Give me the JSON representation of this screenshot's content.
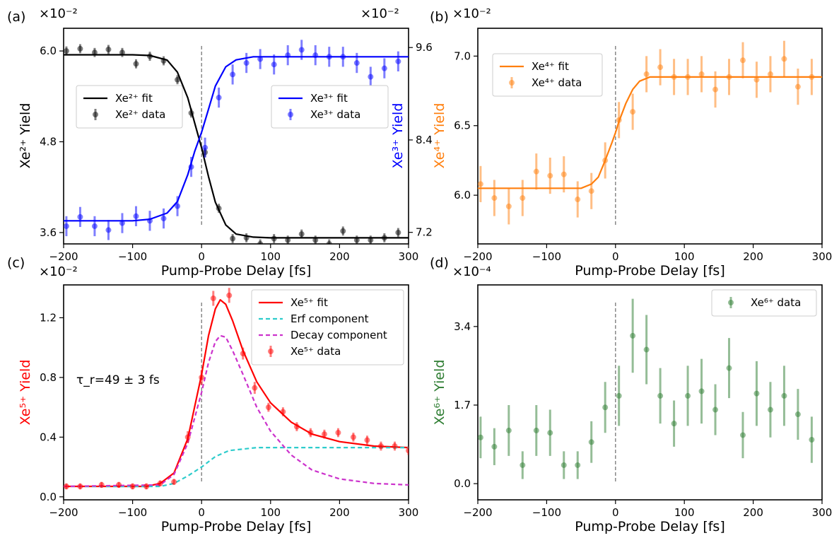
{
  "figure": {
    "colors": {
      "black": "#000000",
      "blue": "#0000ff",
      "orange": "#ff7f0e",
      "red": "#ff0000",
      "teal": "#2ecccc",
      "magenta": "#cc33cc",
      "green": "#2e7d32"
    }
  },
  "chart_data": [
    {
      "panel": "(a)",
      "type": "scatter",
      "xlabel": "Pump-Probe Delay [fs]",
      "ylabel": "Xe²⁺ Yield",
      "y2label": "Xe³⁺ Yield",
      "xlim": [
        -200,
        300
      ],
      "xticks": [
        "−200",
        "−100",
        "0",
        "100",
        "200",
        "300"
      ],
      "ylim": [
        3.45,
        6.3
      ],
      "yticks": [
        "3.6",
        "4.8",
        "6.0"
      ],
      "y_multiplier": "×10⁻²",
      "y2lim": [
        7.05,
        9.85
      ],
      "y2ticks": [
        "7.2",
        "8.4",
        "9.6"
      ],
      "y2_multiplier": "×10⁻²",
      "legend_left": [
        {
          "label": "Xe²⁺ fit",
          "kind": "line",
          "color": "#000000"
        },
        {
          "label": "Xe²⁺ data",
          "kind": "point",
          "color": "#000000"
        }
      ],
      "legend_right": [
        {
          "label": "Xe³⁺ fit",
          "kind": "line",
          "color": "#0000ff"
        },
        {
          "label": "Xe³⁺ data",
          "kind": "point",
          "color": "#0000ff"
        }
      ],
      "series": [
        {
          "name": "Xe²⁺ data",
          "axis": "left",
          "color": "#000000",
          "x": [
            -196,
            -176,
            -155,
            -135,
            -115,
            -95,
            -75,
            -55,
            -35,
            -15,
            5,
            25,
            45,
            65,
            85,
            105,
            125,
            145,
            165,
            185,
            205,
            225,
            245,
            265,
            285
          ],
          "y": [
            6.0,
            6.03,
            5.98,
            6.02,
            5.98,
            5.83,
            5.93,
            5.87,
            5.62,
            5.18,
            4.66,
            3.92,
            3.52,
            3.53,
            3.45,
            3.52,
            3.5,
            3.58,
            3.5,
            3.45,
            3.62,
            3.5,
            3.5,
            3.53,
            3.6
          ],
          "err": [
            0.06,
            0.06,
            0.06,
            0.06,
            0.06,
            0.06,
            0.06,
            0.06,
            0.06,
            0.06,
            0.06,
            0.06,
            0.06,
            0.06,
            0.06,
            0.06,
            0.06,
            0.06,
            0.06,
            0.06,
            0.06,
            0.06,
            0.06,
            0.06,
            0.06
          ]
        },
        {
          "name": "Xe³⁺ data",
          "axis": "right",
          "color": "#0000ff",
          "x": [
            -196,
            -176,
            -155,
            -135,
            -115,
            -95,
            -75,
            -55,
            -35,
            -15,
            5,
            25,
            45,
            65,
            85,
            105,
            125,
            145,
            165,
            185,
            205,
            225,
            245,
            265,
            285
          ],
          "y": [
            7.28,
            7.4,
            7.28,
            7.23,
            7.32,
            7.41,
            7.35,
            7.38,
            7.54,
            8.05,
            8.3,
            8.95,
            9.25,
            9.4,
            9.45,
            9.38,
            9.5,
            9.57,
            9.5,
            9.48,
            9.48,
            9.4,
            9.22,
            9.33,
            9.42
          ],
          "err": [
            0.13,
            0.13,
            0.13,
            0.13,
            0.13,
            0.13,
            0.13,
            0.13,
            0.13,
            0.13,
            0.13,
            0.13,
            0.13,
            0.13,
            0.13,
            0.13,
            0.13,
            0.13,
            0.13,
            0.13,
            0.13,
            0.13,
            0.13,
            0.13,
            0.13
          ]
        },
        {
          "name": "Xe²⁺ fit",
          "axis": "left",
          "color": "#000000",
          "kind": "line",
          "x": [
            -200,
            -100,
            -75,
            -50,
            -35,
            -20,
            -10,
            0,
            10,
            20,
            35,
            50,
            75,
            100,
            300
          ],
          "y": [
            5.95,
            5.95,
            5.94,
            5.88,
            5.72,
            5.38,
            5.05,
            4.72,
            4.34,
            4.0,
            3.7,
            3.58,
            3.54,
            3.53,
            3.53
          ]
        },
        {
          "name": "Xe³⁺ fit",
          "axis": "right",
          "color": "#0000ff",
          "kind": "line",
          "x": [
            -200,
            -100,
            -75,
            -50,
            -35,
            -20,
            -10,
            0,
            10,
            20,
            35,
            50,
            75,
            100,
            300
          ],
          "y": [
            7.35,
            7.35,
            7.37,
            7.45,
            7.6,
            7.95,
            8.25,
            8.5,
            8.8,
            9.1,
            9.35,
            9.44,
            9.48,
            9.48,
            9.48
          ]
        }
      ],
      "vline_x": 0
    },
    {
      "panel": "(b)",
      "type": "scatter",
      "xlabel": "Pump-Probe Delay [fs]",
      "ylabel": "Xe⁴⁺ Yield",
      "xlim": [
        -200,
        300
      ],
      "xticks": [
        "−200",
        "−100",
        "0",
        "100",
        "200",
        "300"
      ],
      "ylim": [
        5.65,
        7.2
      ],
      "yticks": [
        "6.0",
        "6.5",
        "7.0"
      ],
      "y_multiplier": "×10⁻²",
      "legend": [
        {
          "label": "Xe⁴⁺ fit",
          "kind": "line",
          "color": "#ff7f0e"
        },
        {
          "label": "Xe⁴⁺ data",
          "kind": "point",
          "color": "#ff7f0e"
        }
      ],
      "series": [
        {
          "name": "Xe⁴⁺ data",
          "color": "#ff7f0e",
          "x": [
            -196,
            -176,
            -155,
            -135,
            -115,
            -95,
            -75,
            -55,
            -35,
            -15,
            5,
            25,
            45,
            65,
            85,
            105,
            125,
            145,
            165,
            185,
            205,
            225,
            245,
            265,
            285
          ],
          "y": [
            6.08,
            5.98,
            5.92,
            5.98,
            6.17,
            6.14,
            6.15,
            5.97,
            6.03,
            6.25,
            6.54,
            6.6,
            6.87,
            6.92,
            6.85,
            6.85,
            6.87,
            6.76,
            6.85,
            6.97,
            6.83,
            6.87,
            6.98,
            6.78,
            6.85
          ],
          "err": [
            0.13,
            0.13,
            0.13,
            0.13,
            0.13,
            0.13,
            0.13,
            0.13,
            0.13,
            0.13,
            0.13,
            0.13,
            0.13,
            0.13,
            0.13,
            0.13,
            0.13,
            0.13,
            0.13,
            0.13,
            0.13,
            0.13,
            0.13,
            0.13,
            0.13
          ]
        },
        {
          "name": "Xe⁴⁺ fit",
          "color": "#ff7f0e",
          "kind": "line",
          "x": [
            -200,
            -50,
            -35,
            -25,
            -15,
            -5,
            0,
            5,
            15,
            25,
            35,
            50,
            65,
            300
          ],
          "y": [
            6.05,
            6.05,
            6.08,
            6.13,
            6.25,
            6.38,
            6.45,
            6.53,
            6.66,
            6.76,
            6.82,
            6.85,
            6.85,
            6.85
          ]
        }
      ],
      "vline_x": 0
    },
    {
      "panel": "(c)",
      "type": "scatter",
      "xlabel": "Pump-Probe Delay [fs]",
      "ylabel": "Xe⁵⁺ Yield",
      "xlim": [
        -200,
        300
      ],
      "xticks": [
        "−200",
        "−100",
        "0",
        "100",
        "200",
        "300"
      ],
      "ylim": [
        -0.02,
        1.42
      ],
      "yticks": [
        "0.0",
        "0.4",
        "0.8",
        "1.2"
      ],
      "y_multiplier": "×10⁻²",
      "annotation": "τ_r=49 ± 3 fs",
      "legend": [
        {
          "label": "Xe⁵⁺ fit",
          "kind": "line",
          "color": "#ff0000"
        },
        {
          "label": "Erf component",
          "kind": "dash",
          "color": "#2ecccc"
        },
        {
          "label": "Decay component",
          "kind": "dash",
          "color": "#cc33cc"
        },
        {
          "label": "Xe⁵⁺ data",
          "kind": "point",
          "color": "#ff0000"
        }
      ],
      "series": [
        {
          "name": "Xe⁵⁺ data",
          "color": "#ff0000",
          "x": [
            -196,
            -176,
            -145,
            -120,
            -100,
            -80,
            -60,
            -40,
            -20,
            0,
            17,
            40,
            60,
            77,
            97,
            118,
            138,
            158,
            178,
            198,
            220,
            240,
            260,
            280,
            300
          ],
          "y": [
            0.07,
            0.07,
            0.08,
            0.08,
            0.07,
            0.07,
            0.09,
            0.1,
            0.4,
            0.8,
            1.33,
            1.35,
            0.96,
            0.73,
            0.6,
            0.57,
            0.47,
            0.43,
            0.42,
            0.43,
            0.4,
            0.38,
            0.34,
            0.34,
            0.31
          ],
          "err": [
            0.02,
            0.02,
            0.02,
            0.02,
            0.02,
            0.02,
            0.02,
            0.02,
            0.04,
            0.05,
            0.05,
            0.05,
            0.04,
            0.04,
            0.03,
            0.03,
            0.03,
            0.03,
            0.03,
            0.03,
            0.03,
            0.03,
            0.03,
            0.03,
            0.03
          ]
        },
        {
          "name": "Xe⁵⁺ fit",
          "color": "#ff0000",
          "kind": "line",
          "x": [
            -200,
            -80,
            -60,
            -40,
            -20,
            0,
            10,
            20,
            27,
            35,
            45,
            60,
            80,
            100,
            130,
            160,
            200,
            250,
            300
          ],
          "y": [
            0.07,
            0.07,
            0.09,
            0.16,
            0.39,
            0.82,
            1.08,
            1.26,
            1.32,
            1.29,
            1.18,
            0.98,
            0.77,
            0.63,
            0.5,
            0.42,
            0.37,
            0.34,
            0.33
          ]
        },
        {
          "name": "Erf component",
          "color": "#2ecccc",
          "kind": "dash",
          "x": [
            -200,
            -60,
            -40,
            -20,
            0,
            20,
            40,
            60,
            80,
            300
          ],
          "y": [
            0.07,
            0.07,
            0.09,
            0.14,
            0.2,
            0.27,
            0.31,
            0.32,
            0.33,
            0.33
          ]
        },
        {
          "name": "Decay component",
          "color": "#cc33cc",
          "kind": "dash",
          "x": [
            -200,
            -60,
            -40,
            -20,
            0,
            10,
            20,
            27,
            35,
            45,
            60,
            80,
            100,
            130,
            160,
            200,
            250,
            300
          ],
          "y": [
            0.07,
            0.08,
            0.15,
            0.36,
            0.7,
            0.9,
            1.04,
            1.08,
            1.07,
            0.98,
            0.82,
            0.6,
            0.44,
            0.28,
            0.18,
            0.12,
            0.09,
            0.08
          ]
        }
      ],
      "vline_x": 0
    },
    {
      "panel": "(d)",
      "type": "scatter",
      "xlabel": "Pump-Probe Delay [fs]",
      "ylabel": "Xe⁶⁺ Yield",
      "xlim": [
        -200,
        300
      ],
      "xticks": [
        "−200",
        "−100",
        "0",
        "100",
        "200",
        "300"
      ],
      "ylim": [
        -0.35,
        4.3
      ],
      "yticks": [
        "0.0",
        "1.7",
        "3.4"
      ],
      "y_multiplier": "×10⁻⁴",
      "legend": [
        {
          "label": "Xe⁶⁺ data",
          "kind": "point",
          "color": "#2e7d32"
        }
      ],
      "series": [
        {
          "name": "Xe⁶⁺ data",
          "color": "#2e7d32",
          "x": [
            -196,
            -176,
            -155,
            -135,
            -115,
            -95,
            -75,
            -55,
            -35,
            -15,
            5,
            25,
            45,
            65,
            85,
            105,
            125,
            145,
            165,
            185,
            205,
            225,
            245,
            265,
            285
          ],
          "y": [
            1.0,
            0.8,
            1.15,
            0.4,
            1.15,
            1.1,
            0.4,
            0.4,
            0.9,
            1.65,
            1.9,
            3.2,
            2.9,
            1.9,
            1.3,
            1.9,
            2.0,
            1.6,
            2.5,
            1.05,
            1.95,
            1.6,
            1.9,
            1.5,
            0.95
          ],
          "err": [
            0.45,
            0.4,
            0.55,
            0.3,
            0.55,
            0.5,
            0.3,
            0.3,
            0.45,
            0.55,
            0.65,
            0.8,
            0.75,
            0.6,
            0.5,
            0.65,
            0.7,
            0.55,
            0.65,
            0.5,
            0.7,
            0.6,
            0.65,
            0.55,
            0.5
          ]
        }
      ],
      "vline_x": 0
    }
  ]
}
